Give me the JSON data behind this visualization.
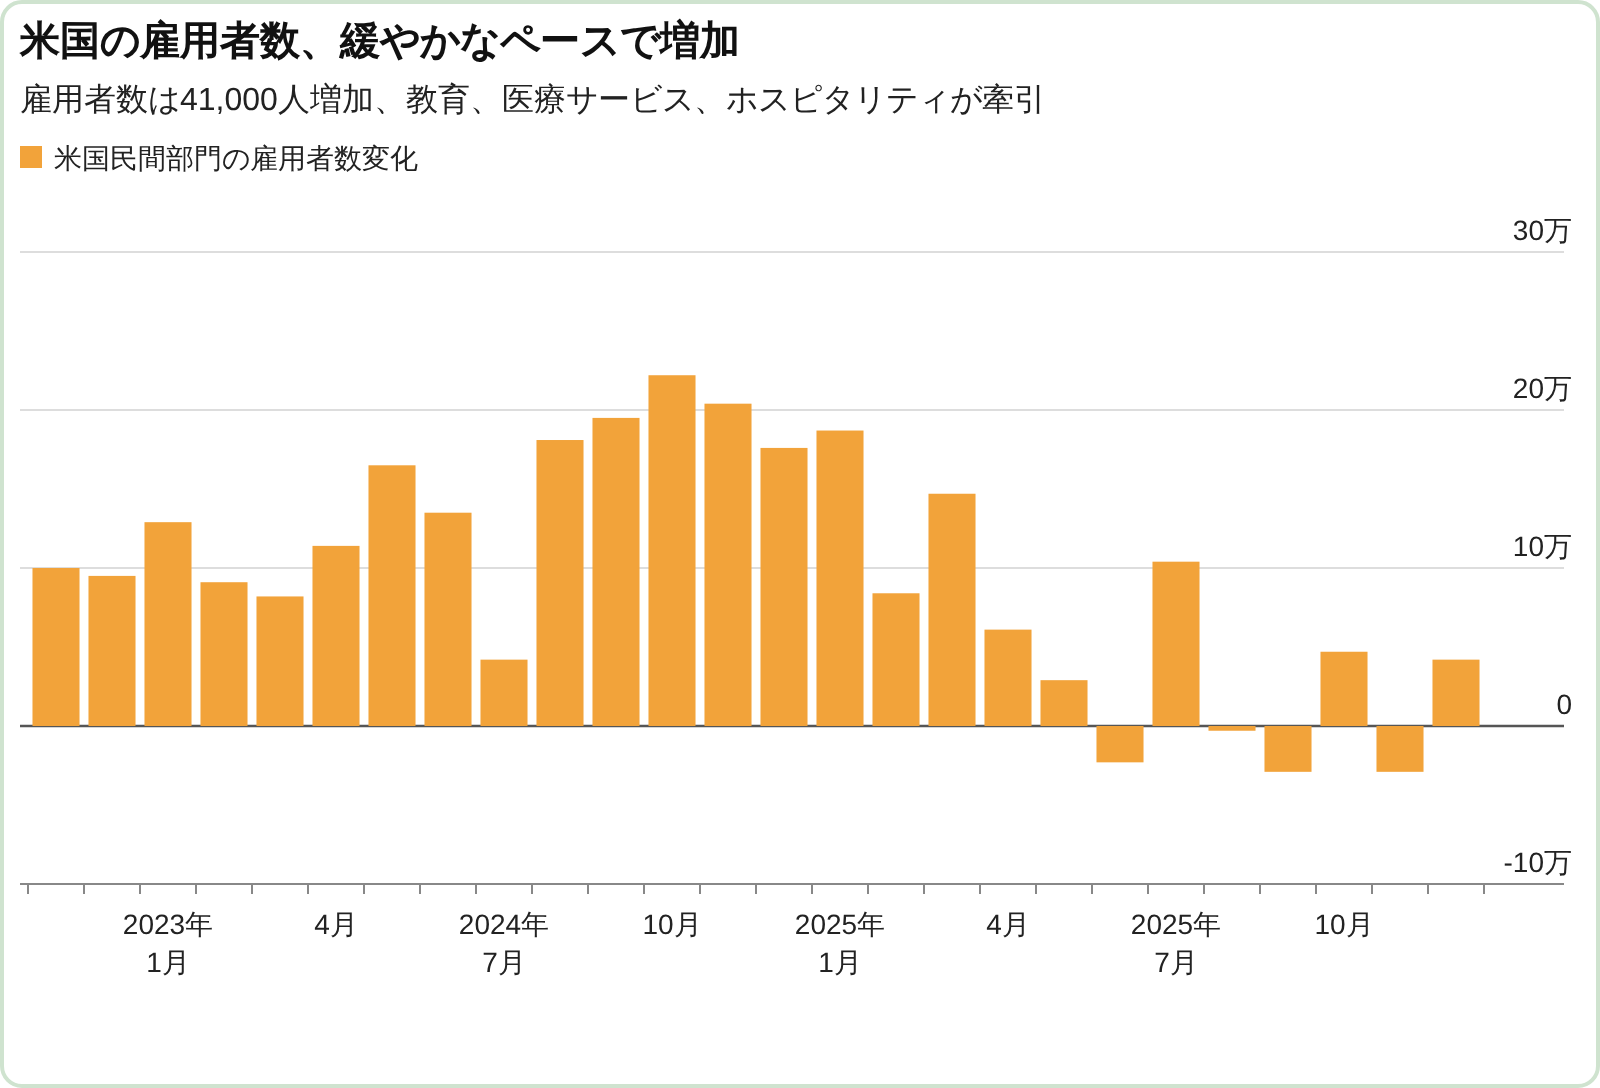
{
  "chart_data": {
    "type": "bar",
    "title": "米国の雇用者数、緩やかなペースで増加",
    "subtitle": "雇用者数は41,000人増加、教育、医療サービス、ホスピタリティが牽引",
    "categories": [
      null,
      null,
      "2023年\n1月",
      null,
      null,
      "4月",
      null,
      null,
      "2024年\n7月",
      null,
      null,
      "10月",
      null,
      null,
      "2025年\n1月",
      null,
      null,
      "4月",
      null,
      null,
      "2025年\n7月",
      null,
      null,
      "10月",
      null,
      null
    ],
    "series": [
      {
        "name": "米国民間部門の雇用者数変化",
        "color": "#f2a33a",
        "values": [
          10.0,
          9.5,
          12.9,
          9.1,
          8.2,
          11.4,
          16.5,
          13.5,
          4.2,
          18.1,
          19.5,
          22.2,
          20.4,
          17.6,
          18.7,
          8.4,
          14.7,
          6.1,
          2.9,
          -2.3,
          10.4,
          -0.3,
          -2.9,
          4.7,
          -2.9,
          4.2
        ]
      }
    ],
    "ylim": [
      -10,
      30
    ],
    "yticks": [
      {
        "value": -10,
        "label": "-10万"
      },
      {
        "value": 0,
        "label": "0"
      },
      {
        "value": 10,
        "label": "10万"
      },
      {
        "value": 20,
        "label": "20万"
      },
      {
        "value": 30,
        "label": "30万"
      }
    ],
    "grid": "y",
    "legend": "top left"
  }
}
